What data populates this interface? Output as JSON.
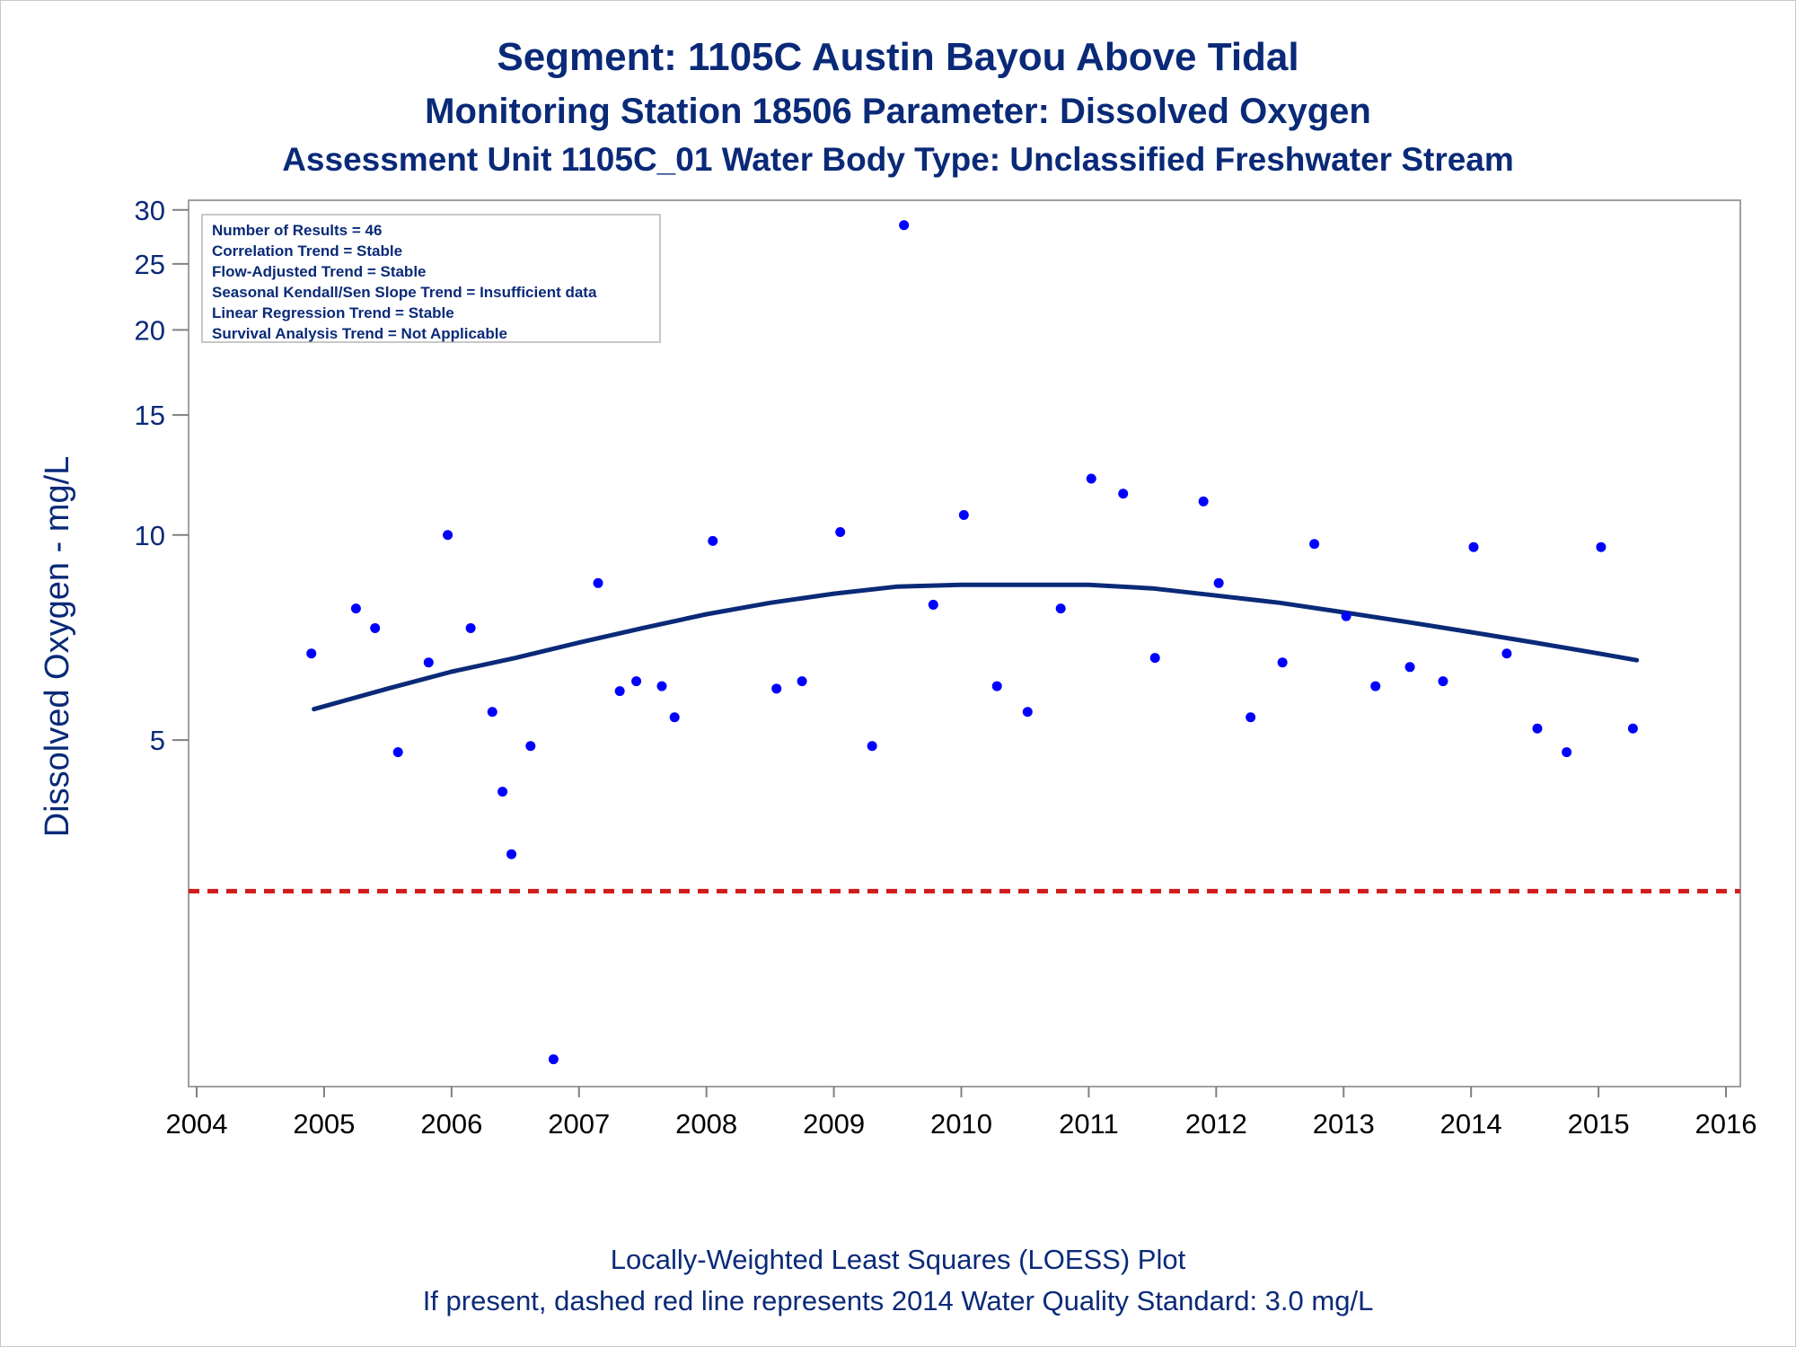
{
  "chart_data": {
    "type": "scatter",
    "title": "Segment: 1105C  Austin Bayou Above Tidal",
    "subtitle": "Monitoring Station 18506 Parameter: Dissolved Oxygen",
    "subtitle2": "Assessment Unit 1105C_01   Water Body Type: Unclassified Freshwater Stream",
    "xlabel": "",
    "ylabel": "Dissolved Oxygen - mg/L",
    "y_scale": "log",
    "xlim": [
      2004,
      2016
    ],
    "ylim": [
      1.55,
      31
    ],
    "x_ticks": [
      "2004",
      "2005",
      "2006",
      "2007",
      "2008",
      "2009",
      "2010",
      "2011",
      "2012",
      "2013",
      "2014",
      "2015",
      "2016"
    ],
    "y_ticks": [
      "5",
      "10",
      "15",
      "20",
      "25",
      "30"
    ],
    "grid": false,
    "stats_box": {
      "placement": "top-left",
      "lines": [
        "Number of Results = 46",
        "Correlation Trend = Stable",
        "Flow-Adjusted Trend = Stable",
        "Seasonal Kendall/Sen Slope Trend = Insufficient data",
        "Linear Regression Trend = Stable",
        "Survival Analysis Trend = Not Applicable"
      ]
    },
    "points": [
      [
        2004.9,
        6.7
      ],
      [
        2005.25,
        7.8
      ],
      [
        2005.4,
        7.3
      ],
      [
        2005.58,
        4.8
      ],
      [
        2005.82,
        6.5
      ],
      [
        2005.97,
        10.0
      ],
      [
        2006.15,
        7.3
      ],
      [
        2006.32,
        5.5
      ],
      [
        2006.4,
        4.2
      ],
      [
        2006.47,
        3.4
      ],
      [
        2006.62,
        4.9
      ],
      [
        2006.8,
        1.7
      ],
      [
        2007.15,
        8.5
      ],
      [
        2007.32,
        5.9
      ],
      [
        2007.45,
        6.1
      ],
      [
        2007.65,
        6.0
      ],
      [
        2007.75,
        5.4
      ],
      [
        2008.05,
        9.8
      ],
      [
        2008.55,
        5.95
      ],
      [
        2008.75,
        6.1
      ],
      [
        2009.05,
        10.1
      ],
      [
        2009.3,
        4.9
      ],
      [
        2009.55,
        28.5
      ],
      [
        2009.78,
        7.9
      ],
      [
        2010.02,
        10.7
      ],
      [
        2010.28,
        6.0
      ],
      [
        2010.52,
        5.5
      ],
      [
        2010.78,
        7.8
      ],
      [
        2011.02,
        12.1
      ],
      [
        2011.27,
        11.5
      ],
      [
        2011.52,
        6.6
      ],
      [
        2011.9,
        11.2
      ],
      [
        2012.02,
        8.5
      ],
      [
        2012.27,
        5.4
      ],
      [
        2012.52,
        6.5
      ],
      [
        2012.77,
        9.7
      ],
      [
        2013.02,
        7.6
      ],
      [
        2013.25,
        6.0
      ],
      [
        2013.52,
        6.4
      ],
      [
        2013.78,
        6.1
      ],
      [
        2014.02,
        9.6
      ],
      [
        2014.28,
        6.7
      ],
      [
        2014.52,
        5.2
      ],
      [
        2014.75,
        4.8
      ],
      [
        2015.02,
        9.6
      ],
      [
        2015.27,
        5.2
      ]
    ],
    "loess": {
      "name": "LOESS",
      "x": [
        2004.92,
        2005.5,
        2006.0,
        2006.5,
        2007.0,
        2007.5,
        2008.0,
        2008.5,
        2009.0,
        2009.5,
        2010.0,
        2010.5,
        2011.0,
        2011.5,
        2012.0,
        2012.5,
        2013.0,
        2013.5,
        2014.0,
        2014.5,
        2015.0,
        2015.3
      ],
      "y": [
        5.55,
        5.95,
        6.3,
        6.6,
        6.95,
        7.3,
        7.65,
        7.95,
        8.2,
        8.4,
        8.45,
        8.45,
        8.45,
        8.35,
        8.15,
        7.95,
        7.7,
        7.45,
        7.2,
        6.95,
        6.7,
        6.55
      ],
      "color": "#0a2a78"
    },
    "standard_line": {
      "value": 3.0,
      "color": "#d11a1a"
    },
    "point_color": "#0000ff",
    "footnotes": [
      "Locally-Weighted Least Squares (LOESS) Plot",
      "If present, dashed red line represents 2014 Water Quality Standard: 3.0 mg/L"
    ]
  }
}
